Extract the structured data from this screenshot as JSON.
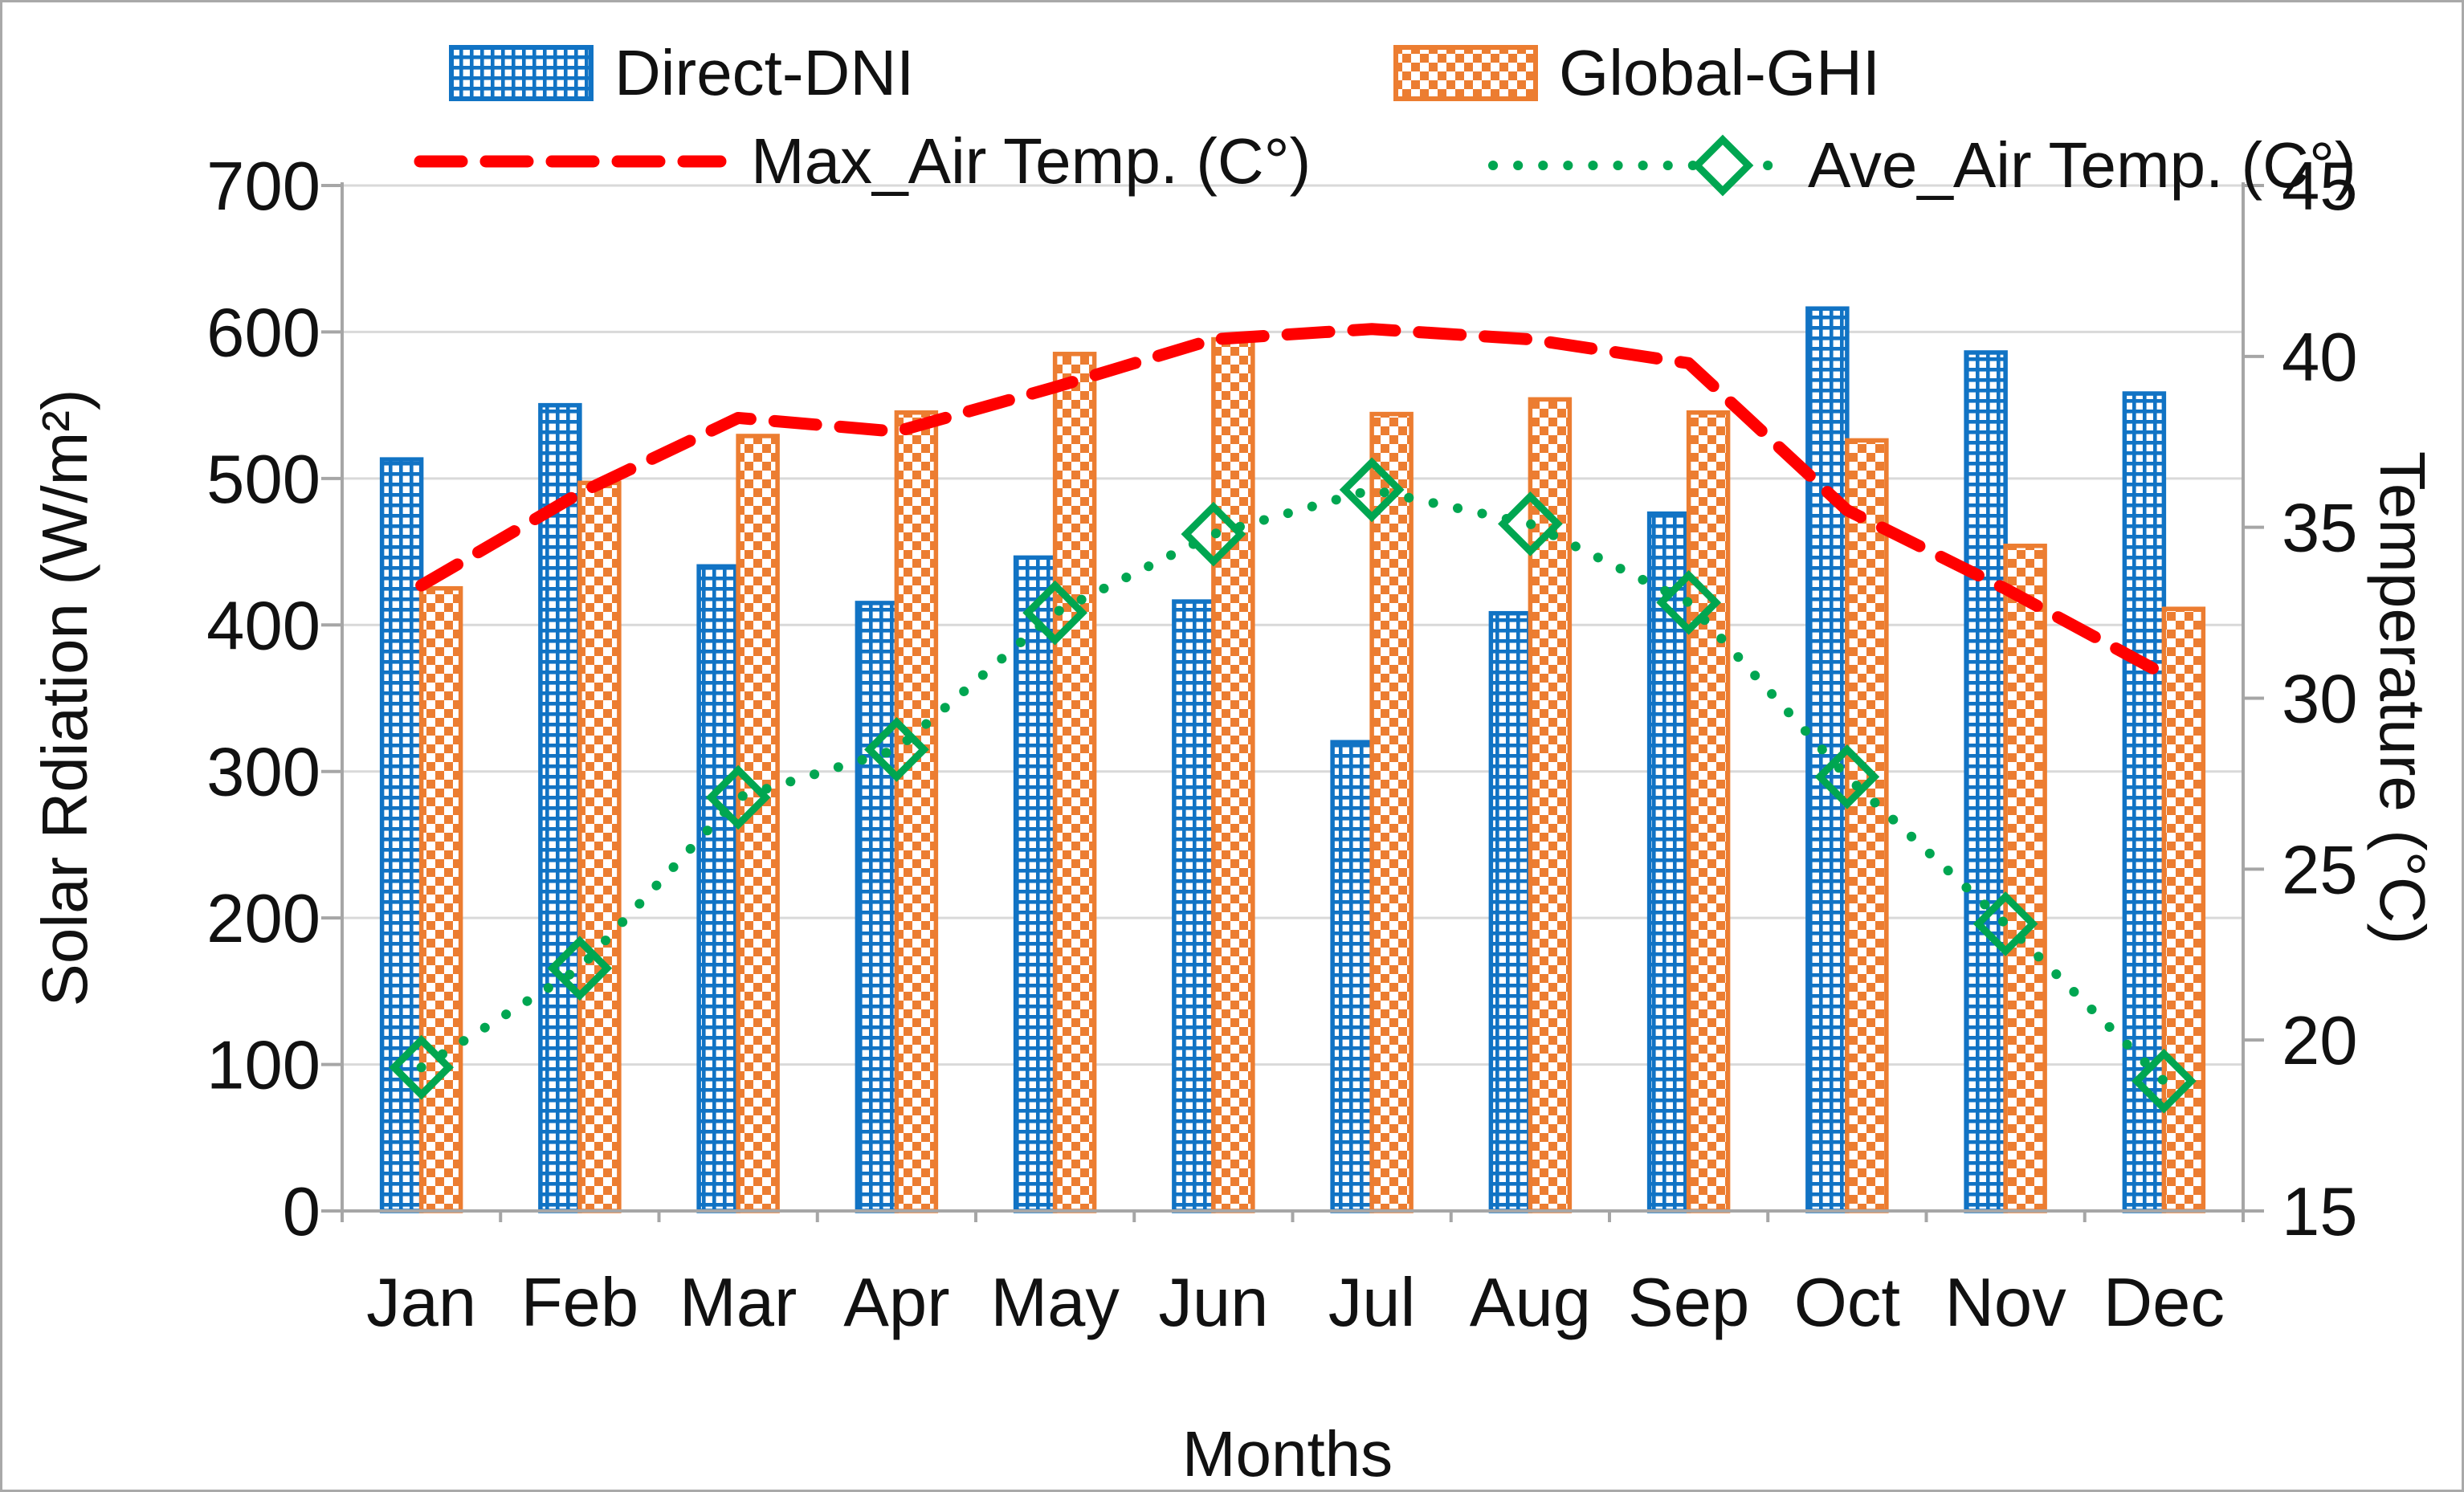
{
  "figure_title": "",
  "colors": {
    "dni_blue": "#1173C4",
    "ghi_orange": "#EC7D31",
    "max_red": "#FF0000",
    "ave_green": "#00A651",
    "gridline": "#D9D9D9",
    "axis_line": "#A6A6A6",
    "text": "#111111"
  },
  "legend": {
    "items": [
      {
        "label": "Direct-DNI",
        "swatch": "blue-grid-pattern"
      },
      {
        "label": "Global-GHI",
        "swatch": "orange-checker-pattern"
      },
      {
        "label": "Max_Air Temp. (C°)",
        "swatch": "red-dashed-line"
      },
      {
        "label": "Ave_Air Temp. (C°)",
        "swatch": "green-dotted-diamond-line"
      }
    ]
  },
  "axes": {
    "left_title": "Solar Rdiation (W/m²)",
    "right_title": "Temperature (°C)",
    "x_title": "Months"
  },
  "chart_data": {
    "type": "bar",
    "subtype": "dual-axis combo (patterned bars + temperature lines)",
    "categories": [
      "Jan",
      "Feb",
      "Mar",
      "Apr",
      "May",
      "Jun",
      "Jul",
      "Aug",
      "Sep",
      "Oct",
      "Nov",
      "Dec"
    ],
    "series": [
      {
        "name": "Direct-DNI",
        "type": "bar",
        "axis": "left",
        "pattern": "grid",
        "color": "#1173C4",
        "values": [
          513,
          550,
          440,
          415,
          446,
          416,
          320,
          408,
          476,
          616,
          586,
          558
        ]
      },
      {
        "name": "Global-GHI",
        "type": "bar",
        "axis": "left",
        "pattern": "checker",
        "color": "#EC7D31",
        "values": [
          425,
          497,
          529,
          545,
          585,
          595,
          544,
          554,
          545,
          526,
          454,
          411
        ]
      },
      {
        "name": "Max_Air Temp. (C°)",
        "type": "line",
        "style": "dashed",
        "axis": "right",
        "color": "#FF0000",
        "values": [
          33.3,
          36.0,
          38.2,
          37.8,
          39.1,
          40.5,
          40.8,
          40.5,
          39.8,
          35.5,
          33.2,
          30.7
        ]
      },
      {
        "name": "Ave_Air Temp. (C°)",
        "type": "line",
        "style": "dotted-diamond",
        "axis": "right",
        "color": "#00A651",
        "values": [
          19.2,
          22.1,
          27.1,
          28.5,
          32.5,
          34.8,
          36.1,
          35.1,
          32.8,
          27.7,
          23.4,
          18.8
        ]
      }
    ],
    "left_axis": {
      "label": "Solar Rdiation (W/m²)",
      "min": 0,
      "max": 700,
      "step": 100,
      "ticks": [
        0,
        100,
        200,
        300,
        400,
        500,
        600,
        700
      ]
    },
    "right_axis": {
      "label": "Temperature (°C)",
      "min": 15,
      "max": 45,
      "step": 5,
      "ticks": [
        15,
        20,
        25,
        30,
        35,
        40,
        45
      ]
    },
    "x_axis": {
      "label": "Months"
    },
    "grid": true,
    "legend_position": "top"
  }
}
